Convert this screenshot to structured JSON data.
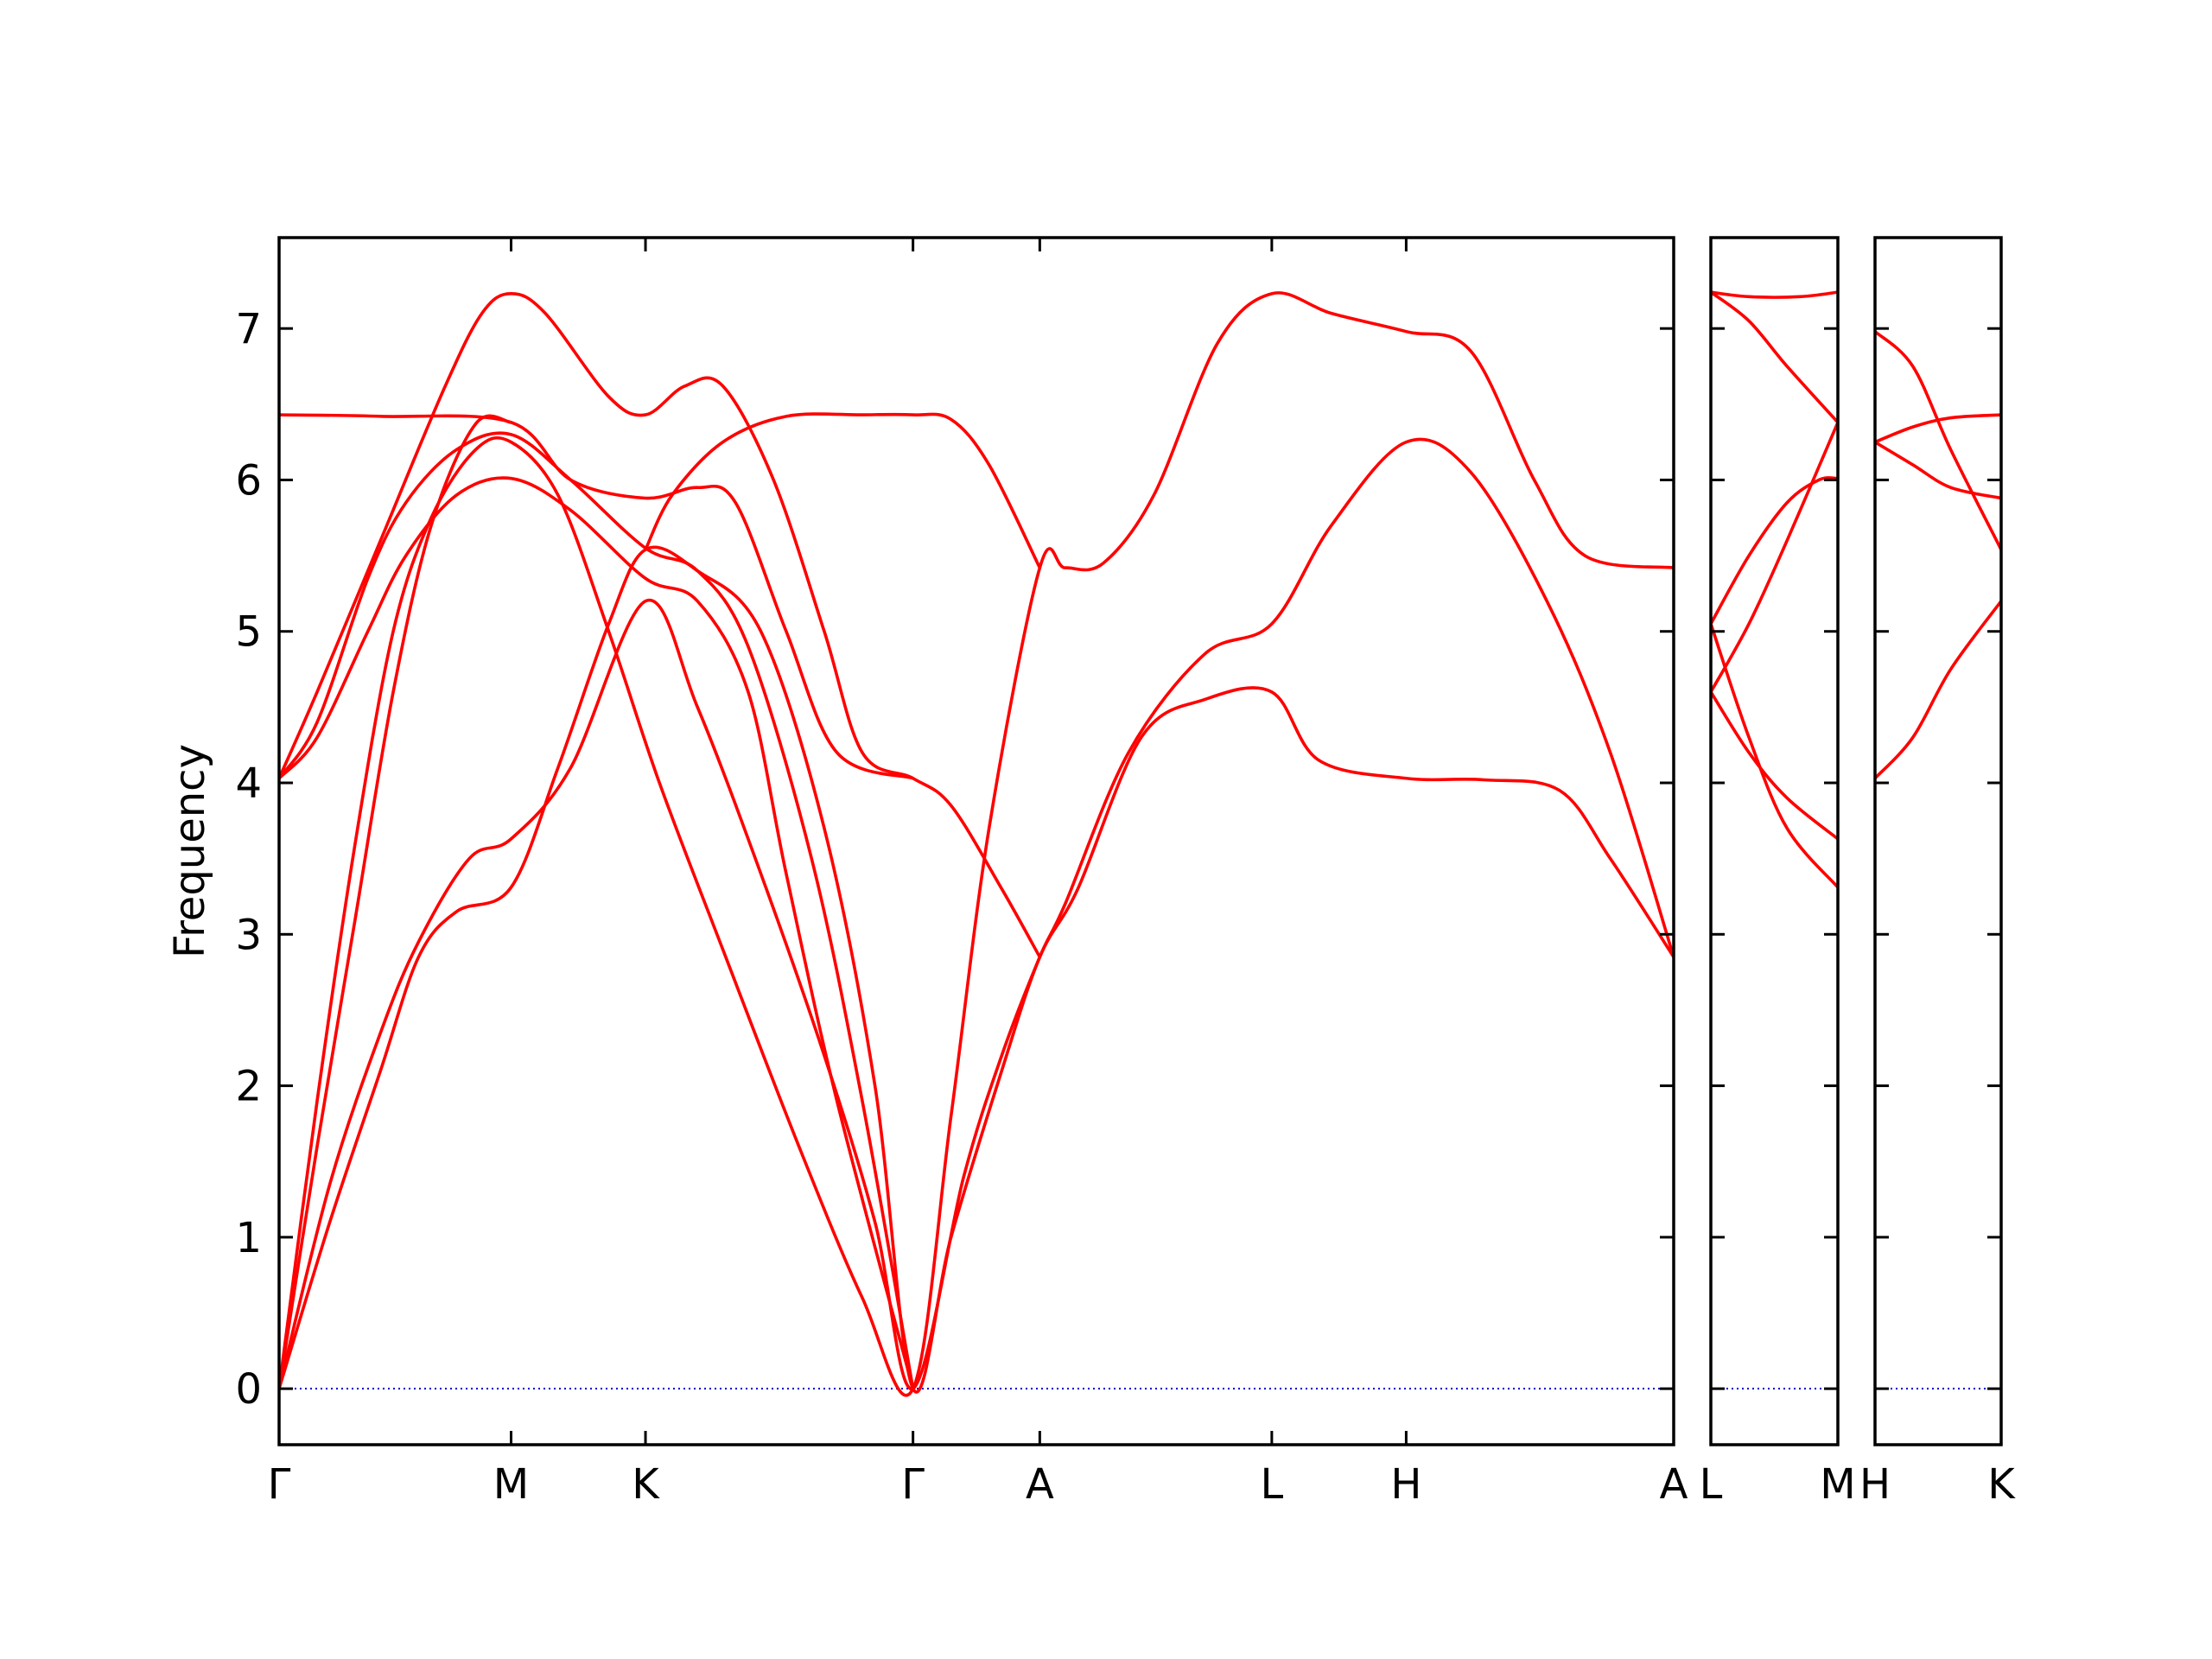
{
  "chart_data": {
    "type": "line",
    "ylabel": "Frequency",
    "ylim": [
      -0.37,
      7.6
    ],
    "yticks": [
      0,
      1,
      2,
      3,
      4,
      5,
      6,
      7
    ],
    "colors": {
      "band": "#ff0000",
      "zero": "#0000cc",
      "axis": "#000000"
    },
    "panels": [
      {
        "name": "main",
        "xlim": [
          0,
          11
        ],
        "labels": [
          {
            "x": 0,
            "text": "Γ"
          },
          {
            "x": 1.83,
            "text": "M"
          },
          {
            "x": 2.89,
            "text": "K"
          },
          {
            "x": 5.0,
            "text": "Γ"
          },
          {
            "x": 6.0,
            "text": "A"
          },
          {
            "x": 7.83,
            "text": "L"
          },
          {
            "x": 8.89,
            "text": "H"
          },
          {
            "x": 11.0,
            "text": "A"
          }
        ],
        "series": [
          {
            "points": [
              [
                0,
                0
              ],
              [
                0.4,
                1.1
              ],
              [
                0.8,
                2.1
              ],
              [
                1.1,
                2.85
              ],
              [
                1.4,
                3.15
              ],
              [
                1.83,
                3.31
              ],
              [
                2.2,
                4.1
              ],
              [
                2.6,
                5.05
              ],
              [
                2.89,
                5.54
              ],
              [
                3.3,
                5.4
              ],
              [
                3.8,
                5.0
              ],
              [
                4.3,
                3.7
              ],
              [
                4.7,
                2.0
              ],
              [
                5.0,
                0
              ],
              [
                5.3,
                1.0
              ],
              [
                5.7,
                2.1
              ],
              [
                6.0,
                2.85
              ],
              [
                6.3,
                3.3
              ],
              [
                6.8,
                4.3
              ],
              [
                7.3,
                4.55
              ],
              [
                7.83,
                4.6
              ],
              [
                8.2,
                4.15
              ],
              [
                8.89,
                4.03
              ],
              [
                9.5,
                4.02
              ],
              [
                10.1,
                3.95
              ],
              [
                10.5,
                3.5
              ],
              [
                11.0,
                2.85
              ]
            ]
          },
          {
            "points": [
              [
                0,
                0
              ],
              [
                0.4,
                1.35
              ],
              [
                0.8,
                2.35
              ],
              [
                1.1,
                2.95
              ],
              [
                1.5,
                3.5
              ],
              [
                1.83,
                3.63
              ],
              [
                2.3,
                4.1
              ],
              [
                2.89,
                5.2
              ],
              [
                3.3,
                4.5
              ],
              [
                3.8,
                3.4
              ],
              [
                4.3,
                2.2
              ],
              [
                4.7,
                1.1
              ],
              [
                5.0,
                0
              ],
              [
                5.4,
                1.4
              ],
              [
                5.7,
                2.2
              ],
              [
                6.0,
                2.85
              ],
              [
                6.2,
                3.2
              ],
              [
                6.7,
                4.2
              ],
              [
                7.3,
                4.85
              ],
              [
                7.83,
                5.05
              ],
              [
                8.3,
                5.7
              ],
              [
                8.89,
                6.25
              ],
              [
                9.4,
                6.05
              ],
              [
                10.0,
                5.2
              ],
              [
                10.5,
                4.2
              ],
              [
                11.0,
                2.85
              ]
            ]
          },
          {
            "points": [
              [
                0,
                0
              ],
              [
                0.3,
                1.9
              ],
              [
                0.6,
                3.6
              ],
              [
                0.9,
                5.0
              ],
              [
                1.2,
                5.75
              ],
              [
                1.55,
                6.2
              ],
              [
                1.83,
                6.25
              ],
              [
                2.2,
                5.9
              ],
              [
                2.6,
                5.0
              ],
              [
                3.0,
                4.0
              ],
              [
                3.5,
                2.9
              ],
              [
                4.1,
                1.6
              ],
              [
                4.6,
                0.6
              ],
              [
                5.0,
                0
              ],
              [
                5.3,
                1.8
              ],
              [
                5.6,
                3.7
              ],
              [
                6.0,
                5.42
              ],
              [
                6.2,
                5.42
              ],
              [
                6.5,
                5.45
              ],
              [
                6.9,
                5.9
              ],
              [
                7.4,
                6.9
              ],
              [
                7.83,
                7.23
              ],
              [
                8.3,
                7.1
              ],
              [
                8.89,
                6.98
              ],
              [
                9.4,
                6.85
              ],
              [
                9.9,
                6.0
              ],
              [
                10.3,
                5.5
              ],
              [
                11.0,
                5.42
              ]
            ]
          },
          {
            "points": [
              [
                0,
                4.03
              ],
              [
                0.3,
                4.4
              ],
              [
                0.7,
                5.35
              ],
              [
                1.0,
                5.85
              ],
              [
                1.4,
                6.2
              ],
              [
                1.83,
                6.3
              ],
              [
                2.3,
                6.0
              ],
              [
                2.89,
                5.55
              ],
              [
                3.3,
                5.4
              ],
              [
                3.7,
                4.9
              ],
              [
                4.2,
                3.5
              ],
              [
                4.6,
                1.9
              ],
              [
                5.0,
                0
              ]
            ]
          },
          {
            "points": [
              [
                0,
                4.03
              ],
              [
                0.3,
                4.6
              ],
              [
                0.8,
                5.6
              ],
              [
                1.3,
                6.6
              ],
              [
                1.6,
                7.1
              ],
              [
                1.83,
                7.23
              ],
              [
                2.1,
                7.1
              ],
              [
                2.6,
                6.55
              ],
              [
                2.89,
                6.43
              ],
              [
                3.2,
                6.62
              ],
              [
                3.5,
                6.62
              ],
              [
                3.9,
                6.0
              ],
              [
                4.3,
                5.0
              ],
              [
                4.6,
                4.2
              ],
              [
                5.0,
                4.03
              ],
              [
                5.3,
                3.85
              ],
              [
                5.7,
                3.3
              ],
              [
                6.0,
                2.85
              ]
            ]
          },
          {
            "points": [
              [
                0,
                4.03
              ],
              [
                0.3,
                4.3
              ],
              [
                0.7,
                5.0
              ],
              [
                1.0,
                5.5
              ],
              [
                1.4,
                5.9
              ],
              [
                1.83,
                6.01
              ],
              [
                2.3,
                5.8
              ],
              [
                2.89,
                5.35
              ],
              [
                3.3,
                5.2
              ],
              [
                3.7,
                4.6
              ],
              [
                4.0,
                3.4
              ],
              [
                4.4,
                1.9
              ],
              [
                5.0,
                0
              ]
            ]
          },
          {
            "points": [
              [
                0,
                6.43
              ],
              [
                0.8,
                6.42
              ],
              [
                1.83,
                6.38
              ],
              [
                2.3,
                6.0
              ],
              [
                2.89,
                5.88
              ],
              [
                3.3,
                5.95
              ],
              [
                3.6,
                5.85
              ],
              [
                4.0,
                5.0
              ],
              [
                4.4,
                4.2
              ],
              [
                5.0,
                4.03
              ]
            ]
          },
          {
            "points": [
              [
                0,
                0
              ],
              [
                0.3,
                1.6
              ],
              [
                0.6,
                3.1
              ],
              [
                0.9,
                4.6
              ],
              [
                1.2,
                5.7
              ],
              [
                1.55,
                6.37
              ],
              [
                1.83,
                6.38
              ]
            ]
          },
          {
            "points": [
              [
                2.89,
                5.54
              ],
              [
                3.1,
                5.9
              ],
              [
                3.5,
                6.25
              ],
              [
                4.0,
                6.42
              ],
              [
                4.6,
                6.43
              ],
              [
                5.0,
                6.43
              ],
              [
                5.3,
                6.4
              ],
              [
                5.6,
                6.1
              ],
              [
                6.0,
                5.42
              ]
            ]
          }
        ]
      },
      {
        "name": "L-M",
        "xlim": [
          0,
          1
        ],
        "labels": [
          {
            "x": 0,
            "text": "L"
          },
          {
            "x": 1,
            "text": "M"
          }
        ],
        "series": [
          {
            "points": [
              [
                0,
                7.24
              ],
              [
                0.3,
                7.21
              ],
              [
                0.7,
                7.21
              ],
              [
                1,
                7.24
              ]
            ]
          },
          {
            "points": [
              [
                0,
                7.24
              ],
              [
                0.3,
                7.05
              ],
              [
                0.6,
                6.75
              ],
              [
                1,
                6.38
              ]
            ]
          },
          {
            "points": [
              [
                0,
                5.05
              ],
              [
                0.3,
                5.5
              ],
              [
                0.6,
                5.85
              ],
              [
                0.85,
                6.0
              ],
              [
                1,
                6.01
              ]
            ]
          },
          {
            "points": [
              [
                0,
                4.6
              ],
              [
                0.3,
                5.05
              ],
              [
                0.6,
                5.6
              ],
              [
                1,
                6.38
              ]
            ]
          },
          {
            "points": [
              [
                0,
                5.05
              ],
              [
                0.3,
                4.3
              ],
              [
                0.6,
                3.7
              ],
              [
                1,
                3.31
              ]
            ]
          },
          {
            "points": [
              [
                0,
                4.6
              ],
              [
                0.3,
                4.2
              ],
              [
                0.6,
                3.9
              ],
              [
                1,
                3.63
              ]
            ]
          }
        ]
      },
      {
        "name": "H-K",
        "xlim": [
          0,
          1
        ],
        "labels": [
          {
            "x": 0,
            "text": "H"
          },
          {
            "x": 1,
            "text": "K"
          }
        ],
        "series": [
          {
            "points": [
              [
                0,
                6.98
              ],
              [
                0.3,
                6.75
              ],
              [
                0.6,
                6.2
              ],
              [
                1,
                5.54
              ]
            ]
          },
          {
            "points": [
              [
                0,
                6.25
              ],
              [
                0.3,
                6.35
              ],
              [
                0.6,
                6.41
              ],
              [
                1,
                6.43
              ]
            ]
          },
          {
            "points": [
              [
                0,
                6.25
              ],
              [
                0.3,
                6.1
              ],
              [
                0.6,
                5.95
              ],
              [
                1,
                5.88
              ]
            ]
          },
          {
            "points": [
              [
                0,
                4.03
              ],
              [
                0.3,
                4.3
              ],
              [
                0.6,
                4.75
              ],
              [
                1,
                5.2
              ]
            ]
          }
        ]
      }
    ]
  }
}
